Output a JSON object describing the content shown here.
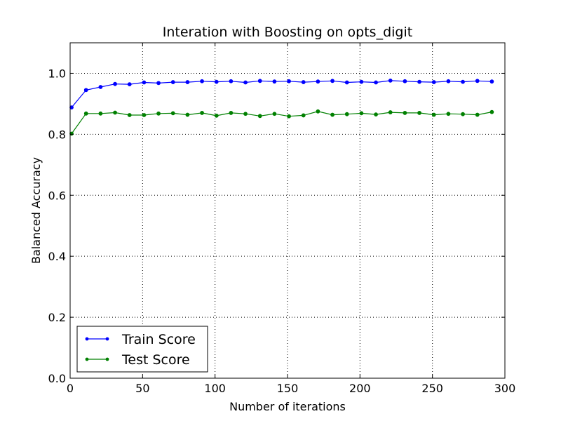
{
  "chart_data": {
    "type": "line",
    "title": "Interation with Boosting on opts_digit",
    "xlabel": "Number of iterations",
    "ylabel": "Balanced Accuracy",
    "xlim": [
      0,
      300
    ],
    "ylim": [
      0.0,
      1.1
    ],
    "xticks": [
      0,
      50,
      100,
      150,
      200,
      250,
      300
    ],
    "yticks": [
      0.0,
      0.2,
      0.4,
      0.6,
      0.8,
      1.0
    ],
    "xtick_labels": [
      "0",
      "50",
      "100",
      "150",
      "200",
      "250",
      "300"
    ],
    "ytick_labels": [
      "0.0",
      "0.2",
      "0.4",
      "0.6",
      "0.8",
      "1.0"
    ],
    "grid": true,
    "legend_position": "lower-left",
    "x": [
      1,
      11,
      21,
      31,
      41,
      51,
      61,
      71,
      81,
      91,
      101,
      111,
      121,
      131,
      141,
      151,
      161,
      171,
      181,
      191,
      201,
      211,
      221,
      231,
      241,
      251,
      261,
      271,
      281,
      291
    ],
    "series": [
      {
        "name": "Train Score",
        "color": "#0000ff",
        "values": [
          0.888,
          0.945,
          0.955,
          0.965,
          0.964,
          0.97,
          0.968,
          0.971,
          0.971,
          0.974,
          0.972,
          0.974,
          0.97,
          0.975,
          0.973,
          0.974,
          0.971,
          0.973,
          0.975,
          0.97,
          0.972,
          0.97,
          0.976,
          0.974,
          0.972,
          0.971,
          0.974,
          0.972,
          0.975,
          0.973
        ]
      },
      {
        "name": "Test Score",
        "color": "#008000",
        "values": [
          0.802,
          0.868,
          0.868,
          0.871,
          0.863,
          0.863,
          0.868,
          0.869,
          0.864,
          0.87,
          0.861,
          0.87,
          0.867,
          0.86,
          0.867,
          0.859,
          0.862,
          0.875,
          0.864,
          0.866,
          0.869,
          0.865,
          0.872,
          0.87,
          0.87,
          0.864,
          0.867,
          0.866,
          0.864,
          0.873
        ]
      }
    ]
  }
}
